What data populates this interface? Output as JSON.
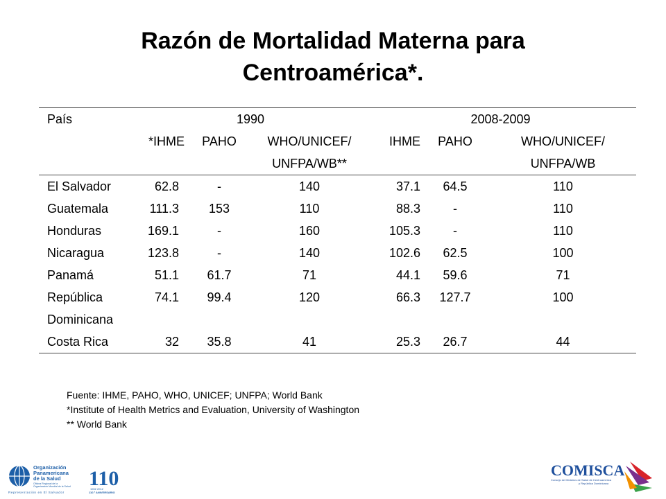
{
  "title": {
    "line1": "Razón de Mortalidad Materna para",
    "line2": "Centroamérica*."
  },
  "table": {
    "header": {
      "pais": "País",
      "year1": "1990",
      "year2": "2008-2009",
      "cols": [
        "*IHME",
        "PAHO",
        "WHO/UNICEF/",
        "IHME",
        "PAHO",
        "WHO/UNICEF/"
      ],
      "cols_line2": [
        "",
        "",
        "UNFPA/WB**",
        "",
        "",
        "UNFPA/WB"
      ]
    },
    "rows": [
      {
        "country": "El Salvador",
        "v": [
          "62.8",
          "-",
          "140",
          "37.1",
          "64.5",
          "110"
        ]
      },
      {
        "country": "Guatemala",
        "v": [
          "111.3",
          "153",
          "110",
          "88.3",
          "-",
          "110"
        ]
      },
      {
        "country": "Honduras",
        "v": [
          "169.1",
          "-",
          "160",
          "105.3",
          "-",
          "110"
        ]
      },
      {
        "country": "Nicaragua",
        "v": [
          "123.8",
          "-",
          "140",
          "102.6",
          "62.5",
          "100"
        ]
      },
      {
        "country": "Panamá",
        "v": [
          "51.1",
          "61.7",
          "71",
          "44.1",
          "59.6",
          "71"
        ]
      },
      {
        "country": "República",
        "v": [
          "74.1",
          "99.4",
          "120",
          "66.3",
          "127.7",
          "100"
        ]
      },
      {
        "country": "Dominicana",
        "v": [
          "",
          "",
          "",
          "",
          "",
          ""
        ]
      },
      {
        "country": "Costa Rica",
        "v": [
          "32",
          "35.8",
          "41",
          "25.3",
          "26.7",
          "44"
        ]
      }
    ]
  },
  "notes": {
    "source": "Fuente:  IHME, PAHO, WHO, UNICEF; UNFPA; World Bank",
    "footnote1": "*Institute of Health Metrics and Evaluation, University of Washington",
    "footnote2": "** World Bank"
  },
  "logos": {
    "left_org1": "Organización",
    "left_org2": "Panamericana",
    "left_org3": "de la Salud",
    "left_org4": "Oficina Regional de la",
    "left_org5": "Organización Mundial de la Salud",
    "left_rep": "Representación en El Salvador",
    "left_anniv": "110",
    "left_anniv_years": "1902  2012",
    "left_anniv_label": "110.º ANIVERSARIO",
    "right_name": "COMISCA",
    "right_sub1": "Consejo de Ministros de Salud de Centroamérica",
    "right_sub2": "y República Dominicana",
    "colors": {
      "paho_blue": "#1d5fa8",
      "comisca_blue": "#1e4f9c",
      "comisca_red": "#d8232a",
      "comisca_purple": "#7a2f8c",
      "comisca_green": "#3aa14a"
    }
  }
}
